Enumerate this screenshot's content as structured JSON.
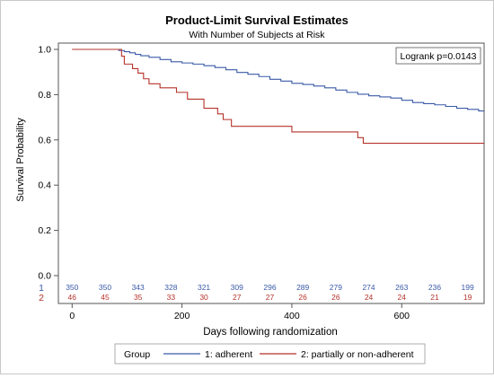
{
  "chart_data": {
    "type": "line",
    "title": "Product-Limit Survival Estimates",
    "subtitle": "With Number of Subjects at Risk",
    "xlabel": "Days following randomization",
    "ylabel": "Survival Probability",
    "xlim": [
      -25,
      750
    ],
    "ylim": [
      0.0,
      1.0
    ],
    "x_ticks": [
      0,
      200,
      400,
      600
    ],
    "y_ticks": [
      "0.0",
      "0.2",
      "0.4",
      "0.6",
      "0.8",
      "1.0"
    ],
    "annotation": "Logrank p=0.0143",
    "legend": {
      "title": "Group",
      "position": "bottom",
      "entries": [
        {
          "label": "1: adherent",
          "color": "#3a5aa8"
        },
        {
          "label": "2: partially or non-adherent",
          "color": "#b5332b"
        }
      ]
    },
    "series": [
      {
        "name": "1: adherent",
        "color": "#3a5aa8",
        "step_points": [
          [
            0,
            1.0
          ],
          [
            80,
            1.0
          ],
          [
            85,
            0.995
          ],
          [
            95,
            0.99
          ],
          [
            105,
            0.985
          ],
          [
            115,
            0.978
          ],
          [
            125,
            0.972
          ],
          [
            140,
            0.965
          ],
          [
            160,
            0.955
          ],
          [
            180,
            0.945
          ],
          [
            200,
            0.94
          ],
          [
            220,
            0.935
          ],
          [
            240,
            0.928
          ],
          [
            260,
            0.92
          ],
          [
            280,
            0.91
          ],
          [
            300,
            0.898
          ],
          [
            320,
            0.89
          ],
          [
            340,
            0.88
          ],
          [
            360,
            0.868
          ],
          [
            380,
            0.86
          ],
          [
            400,
            0.85
          ],
          [
            420,
            0.845
          ],
          [
            440,
            0.838
          ],
          [
            460,
            0.83
          ],
          [
            480,
            0.82
          ],
          [
            500,
            0.81
          ],
          [
            520,
            0.802
          ],
          [
            540,
            0.795
          ],
          [
            560,
            0.79
          ],
          [
            580,
            0.785
          ],
          [
            600,
            0.775
          ],
          [
            620,
            0.765
          ],
          [
            640,
            0.76
          ],
          [
            660,
            0.755
          ],
          [
            680,
            0.748
          ],
          [
            700,
            0.74
          ],
          [
            720,
            0.735
          ],
          [
            740,
            0.728
          ],
          [
            750,
            0.728
          ]
        ]
      },
      {
        "name": "2: partially or non-adherent",
        "color": "#b5332b",
        "step_points": [
          [
            0,
            1.0
          ],
          [
            80,
            1.0
          ],
          [
            90,
            0.97
          ],
          [
            95,
            0.935
          ],
          [
            110,
            0.915
          ],
          [
            120,
            0.895
          ],
          [
            130,
            0.87
          ],
          [
            140,
            0.848
          ],
          [
            160,
            0.83
          ],
          [
            190,
            0.81
          ],
          [
            210,
            0.78
          ],
          [
            240,
            0.74
          ],
          [
            265,
            0.715
          ],
          [
            275,
            0.69
          ],
          [
            290,
            0.66
          ],
          [
            400,
            0.635
          ],
          [
            520,
            0.61
          ],
          [
            530,
            0.585
          ],
          [
            750,
            0.585
          ]
        ]
      }
    ],
    "at_risk": {
      "days": [
        0,
        60,
        120,
        180,
        240,
        300,
        360,
        420,
        480,
        540,
        600,
        660,
        720
      ],
      "rows": [
        {
          "label": "1",
          "color": "#3a5aa8",
          "values": [
            350,
            350,
            343,
            328,
            321,
            309,
            296,
            289,
            279,
            274,
            263,
            236,
            199
          ]
        },
        {
          "label": "2",
          "color": "#b5332b",
          "values": [
            46,
            45,
            35,
            33,
            30,
            27,
            27,
            26,
            26,
            24,
            24,
            21,
            19
          ]
        }
      ]
    }
  }
}
